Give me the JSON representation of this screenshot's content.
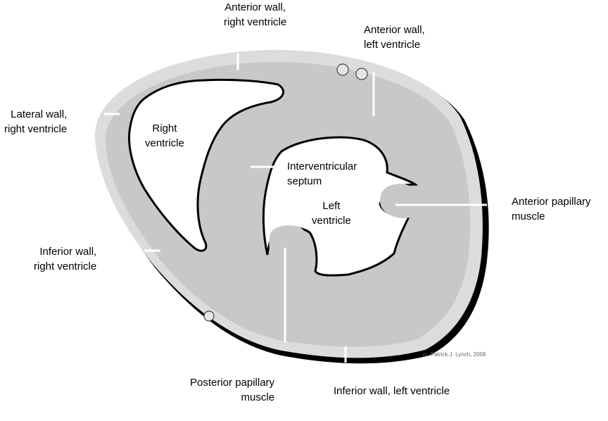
{
  "labels": {
    "anterior_wall_rv": [
      "Anterior wall,",
      "right ventricle"
    ],
    "anterior_wall_lv": [
      "Anterior wall,",
      "left ventricle"
    ],
    "lateral_wall_rv": [
      "Lateral wall,",
      "right ventricle"
    ],
    "right_ventricle": [
      "Right",
      "ventricle"
    ],
    "interventricular_septum": [
      "Interventricular",
      "septum"
    ],
    "left_ventricle": [
      "Left",
      "ventricle"
    ],
    "anterior_papillary": [
      "Anterior papillary",
      "muscle"
    ],
    "inferior_wall_rv": [
      "Inferior wall,",
      "right ventricle"
    ],
    "posterior_papillary": [
      "Posterior papillary",
      "muscle"
    ],
    "inferior_wall_lv": [
      "Inferior wall, left ventricle"
    ]
  },
  "credit": "Patrick J. Lynch, 2006",
  "credit_symbol": "cc",
  "colors": {
    "outer_wall": "#dcdcdc",
    "muscle": "#c8c8c8",
    "outline": "#000000",
    "cavity": "#ffffff",
    "leader": "#ffffff"
  }
}
